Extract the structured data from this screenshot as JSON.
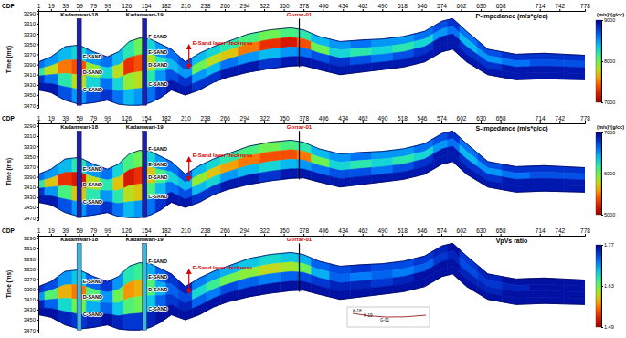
{
  "chart_data": {
    "type": "heatmap",
    "x_label": "CDP",
    "y_label": "Time (ms)",
    "xlim": [
      1,
      778
    ],
    "ylim": [
      3285,
      3475
    ],
    "xticks": [
      1,
      19,
      39,
      59,
      79,
      99,
      126,
      154,
      182,
      210,
      238,
      266,
      294,
      322,
      350,
      378,
      406,
      434,
      462,
      490,
      518,
      546,
      574,
      602,
      630,
      658,
      714,
      742,
      778
    ],
    "yticks": [
      3290,
      3310,
      3330,
      3350,
      3370,
      3390,
      3410,
      3430,
      3450,
      3470
    ],
    "x": [
      1,
      19,
      39,
      59,
      79,
      99,
      115,
      130,
      145,
      160,
      175,
      190,
      210,
      230,
      250,
      270,
      300,
      330,
      360,
      378,
      400,
      430,
      460,
      490,
      520,
      550,
      575,
      590,
      610,
      640,
      680,
      720,
      778
    ],
    "top": [
      3385,
      3375,
      3355,
      3352,
      3365,
      3375,
      3365,
      3345,
      3338,
      3340,
      3350,
      3360,
      3385,
      3368,
      3355,
      3345,
      3330,
      3322,
      3318,
      3322,
      3335,
      3345,
      3342,
      3340,
      3335,
      3325,
      3305,
      3300,
      3325,
      3360,
      3370,
      3368,
      3372
    ],
    "base": [
      3440,
      3445,
      3460,
      3468,
      3465,
      3460,
      3468,
      3470,
      3470,
      3465,
      3455,
      3440,
      3450,
      3440,
      3425,
      3415,
      3405,
      3398,
      3393,
      3392,
      3400,
      3410,
      3405,
      3400,
      3395,
      3385,
      3365,
      3360,
      3385,
      3410,
      3420,
      3418,
      3420
    ],
    "wells": [
      {
        "name": "Kadamwari-18",
        "color": "#000000",
        "marker": "log",
        "cdp": 59,
        "top": 3300,
        "base": 3470,
        "sands": [
          {
            "label": "E-SAND",
            "time": 3375
          },
          {
            "label": "D-SAND",
            "time": 3405
          },
          {
            "label": "C-SAND",
            "time": 3440
          }
        ]
      },
      {
        "name": "Kadamwari-19",
        "color": "#000000",
        "marker": "log",
        "cdp": 152,
        "top": 3300,
        "base": 3470,
        "sands": [
          {
            "label": "F-SAND",
            "time": 3335
          },
          {
            "label": "E-SAND",
            "time": 3365
          },
          {
            "label": "D-SAND",
            "time": 3390
          },
          {
            "label": "C-SAND",
            "time": 3428
          }
        ]
      },
      {
        "name": "Gorrar-01",
        "color": "#d00000",
        "marker": "line",
        "cdp": 372,
        "top": 3300,
        "base": 3395,
        "sands": []
      }
    ],
    "annotation": {
      "text": "E-Sand layer thickness",
      "cdp": 215,
      "from": 3355,
      "to": 3395
    },
    "panels": [
      {
        "title": "P-impedance (m/s*g/cc)",
        "colorbar_label": "(m/s)*(g/cc)",
        "colorbar_range": [
          7000,
          9000
        ],
        "colorbar_ticks": [
          7000,
          8000,
          9000
        ],
        "values": [
          [
            8600,
            8500,
            8400,
            8300,
            8500,
            8600,
            8400,
            8200,
            8000,
            8300,
            8500,
            8600,
            8700,
            8400,
            8300,
            8200,
            8100,
            8000,
            8100,
            8200,
            8400,
            8500,
            8600,
            8500,
            8500,
            8600,
            8700,
            8800,
            8600,
            8700,
            8800,
            8800,
            8800
          ],
          [
            8200,
            7800,
            7500,
            7400,
            7900,
            8300,
            7800,
            7300,
            7400,
            7800,
            8200,
            8400,
            8500,
            8000,
            7800,
            7700,
            7500,
            7300,
            7200,
            7400,
            8000,
            8300,
            8200,
            8300,
            8200,
            8300,
            8500,
            8600,
            8400,
            8500,
            8600,
            8700,
            8700
          ],
          [
            8800,
            8600,
            8200,
            7800,
            8300,
            8600,
            8300,
            7900,
            7800,
            8200,
            8500,
            8700,
            8800,
            8500,
            8400,
            8600,
            8500,
            8400,
            8500,
            8600,
            8700,
            8800,
            8700,
            8600,
            8700,
            8800,
            8900,
            8900,
            8800,
            8800,
            8900,
            8900,
            8900
          ],
          [
            8900,
            8900,
            8700,
            8500,
            8700,
            8800,
            8600,
            8400,
            8500,
            8600,
            8800,
            8900,
            8900,
            8800,
            8800,
            8900,
            8900,
            8800,
            8900,
            8900,
            8900,
            8900,
            8900,
            8900,
            8900,
            8900,
            8900,
            8900,
            8900,
            8900,
            8900,
            8900,
            8900
          ]
        ]
      },
      {
        "title": "S-impedance (m/s*g/cc)",
        "colorbar_label": "(m/s)*(g/cc)",
        "colorbar_range": [
          5000,
          7000
        ],
        "colorbar_ticks": [
          5000,
          6000,
          7000
        ],
        "values": [
          [
            6600,
            6500,
            6400,
            6200,
            6500,
            6600,
            6300,
            6100,
            6000,
            6300,
            6500,
            6600,
            6700,
            6400,
            6300,
            6200,
            6100,
            6000,
            6100,
            6200,
            6400,
            6500,
            6600,
            6500,
            6500,
            6600,
            6700,
            6800,
            6600,
            6700,
            6800,
            6800,
            6800
          ],
          [
            6200,
            5700,
            5300,
            5200,
            5800,
            6200,
            5700,
            5200,
            5300,
            5700,
            6100,
            6300,
            6400,
            5900,
            5700,
            5600,
            5500,
            5400,
            5400,
            5500,
            6000,
            6300,
            6200,
            6300,
            6200,
            6300,
            6500,
            6600,
            6400,
            6500,
            6600,
            6700,
            6700
          ],
          [
            6800,
            6500,
            6100,
            5700,
            6200,
            6500,
            6200,
            5800,
            5700,
            6100,
            6400,
            6600,
            6700,
            6400,
            6300,
            6500,
            6400,
            6300,
            6400,
            6500,
            6600,
            6700,
            6700,
            6600,
            6700,
            6800,
            6900,
            6900,
            6800,
            6800,
            6900,
            6900,
            6900
          ],
          [
            6900,
            6900,
            6700,
            6500,
            6700,
            6800,
            6600,
            6400,
            6500,
            6600,
            6800,
            6900,
            6900,
            6800,
            6800,
            6900,
            6900,
            6800,
            6900,
            6900,
            6900,
            6900,
            6900,
            6900,
            6900,
            6900,
            6900,
            6900,
            6900,
            6900,
            6900,
            6900,
            6900
          ]
        ]
      },
      {
        "title": "VpVs ratio",
        "colorbar_range": [
          1.49,
          1.77
        ],
        "colorbar_ticks": [
          1.49,
          1.63,
          1.77
        ],
        "inset_labels": [
          "K-18",
          "K-19",
          "G-01"
        ],
        "values": [
          [
            1.74,
            1.73,
            1.7,
            1.68,
            1.72,
            1.74,
            1.7,
            1.66,
            1.65,
            1.69,
            1.72,
            1.74,
            1.75,
            1.71,
            1.7,
            1.69,
            1.68,
            1.67,
            1.68,
            1.69,
            1.72,
            1.73,
            1.74,
            1.73,
            1.73,
            1.74,
            1.75,
            1.76,
            1.74,
            1.75,
            1.76,
            1.76,
            1.76
          ],
          [
            1.7,
            1.64,
            1.58,
            1.56,
            1.64,
            1.7,
            1.63,
            1.57,
            1.58,
            1.64,
            1.69,
            1.72,
            1.73,
            1.67,
            1.65,
            1.63,
            1.62,
            1.6,
            1.61,
            1.63,
            1.69,
            1.72,
            1.71,
            1.72,
            1.71,
            1.72,
            1.74,
            1.75,
            1.73,
            1.74,
            1.75,
            1.76,
            1.76
          ],
          [
            1.75,
            1.72,
            1.67,
            1.63,
            1.69,
            1.72,
            1.68,
            1.64,
            1.63,
            1.68,
            1.72,
            1.74,
            1.75,
            1.72,
            1.71,
            1.73,
            1.72,
            1.71,
            1.72,
            1.73,
            1.74,
            1.75,
            1.75,
            1.74,
            1.75,
            1.76,
            1.76,
            1.76,
            1.75,
            1.75,
            1.76,
            1.76,
            1.76
          ],
          [
            1.76,
            1.76,
            1.75,
            1.74,
            1.75,
            1.76,
            1.75,
            1.74,
            1.74,
            1.75,
            1.76,
            1.76,
            1.76,
            1.76,
            1.76,
            1.76,
            1.76,
            1.76,
            1.76,
            1.76,
            1.76,
            1.76,
            1.76,
            1.76,
            1.76,
            1.76,
            1.76,
            1.76,
            1.76,
            1.76,
            1.76,
            1.76,
            1.76
          ]
        ]
      }
    ]
  }
}
